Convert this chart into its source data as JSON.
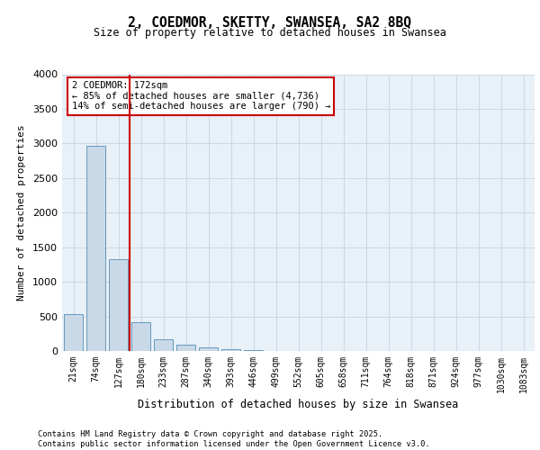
{
  "title_line1": "2, COEDMOR, SKETTY, SWANSEA, SA2 8BQ",
  "title_line2": "Size of property relative to detached houses in Swansea",
  "xlabel": "Distribution of detached houses by size in Swansea",
  "ylabel": "Number of detached properties",
  "categories": [
    "21sqm",
    "74sqm",
    "127sqm",
    "180sqm",
    "233sqm",
    "287sqm",
    "340sqm",
    "393sqm",
    "446sqm",
    "499sqm",
    "552sqm",
    "605sqm",
    "658sqm",
    "711sqm",
    "764sqm",
    "818sqm",
    "871sqm",
    "924sqm",
    "977sqm",
    "1030sqm",
    "1083sqm"
  ],
  "values": [
    530,
    2960,
    1330,
    420,
    175,
    95,
    50,
    25,
    10,
    5,
    0,
    0,
    0,
    0,
    0,
    0,
    0,
    0,
    0,
    0,
    0
  ],
  "bar_color": "#c9d9e8",
  "bar_edge_color": "#6699bb",
  "grid_color": "#c8d4e0",
  "background_color": "#e8f0f8",
  "vline_color": "#cc0000",
  "annotation_text": "2 COEDMOR: 172sqm\n← 85% of detached houses are smaller (4,736)\n14% of semi-detached houses are larger (790) →",
  "annotation_box_color": "#cc0000",
  "ylim": [
    0,
    4000
  ],
  "yticks": [
    0,
    500,
    1000,
    1500,
    2000,
    2500,
    3000,
    3500,
    4000
  ],
  "footer_line1": "Contains HM Land Registry data © Crown copyright and database right 2025.",
  "footer_line2": "Contains public sector information licensed under the Open Government Licence v3.0."
}
